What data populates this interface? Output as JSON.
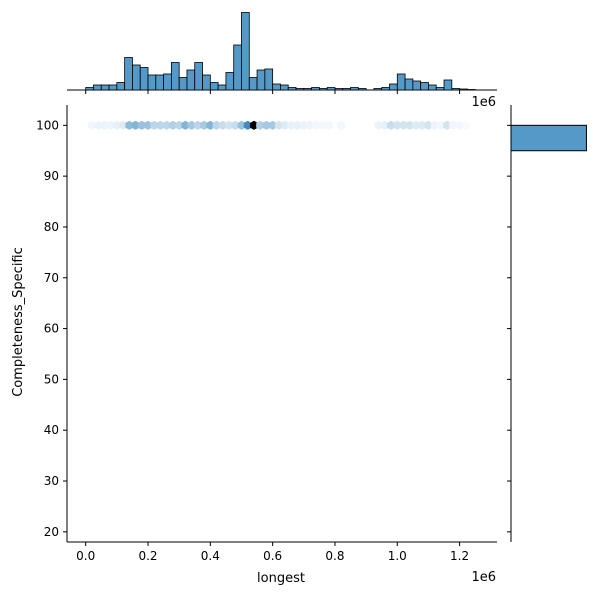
{
  "chart_data": {
    "type": "hexbin-joint",
    "xlabel": "longest",
    "ylabel": "Completeness_Specific",
    "x_offset_label": "1e6",
    "top_hist_offset_label": "1e6",
    "xlim": [
      -0.06,
      1.32
    ],
    "ylim": [
      18,
      104
    ],
    "x_ticks": [
      0.0,
      0.2,
      0.4,
      0.6,
      0.8,
      1.0,
      1.2
    ],
    "x_tick_labels": [
      "0.0",
      "0.2",
      "0.4",
      "0.6",
      "0.8",
      "1.0",
      "1.2"
    ],
    "y_ticks": [
      20,
      30,
      40,
      50,
      60,
      70,
      80,
      90,
      100
    ],
    "y_tick_labels": [
      "20",
      "30",
      "40",
      "50",
      "60",
      "70",
      "80",
      "90",
      "100"
    ],
    "colors": {
      "bar_fill": "#5599c9",
      "bar_edge": "#000000",
      "hex_dark": "#000000",
      "hex_base": "#1f77b4"
    },
    "hexbins": {
      "y": 100,
      "x": [
        0.02,
        0.04,
        0.06,
        0.08,
        0.1,
        0.12,
        0.14,
        0.16,
        0.18,
        0.2,
        0.22,
        0.24,
        0.26,
        0.28,
        0.3,
        0.32,
        0.34,
        0.36,
        0.38,
        0.4,
        0.42,
        0.44,
        0.46,
        0.48,
        0.5,
        0.52,
        0.54,
        0.56,
        0.58,
        0.6,
        0.62,
        0.64,
        0.66,
        0.68,
        0.7,
        0.72,
        0.74,
        0.76,
        0.78,
        0.82,
        0.94,
        0.96,
        0.98,
        1.0,
        1.02,
        1.04,
        1.06,
        1.08,
        1.1,
        1.12,
        1.14,
        1.16,
        1.18,
        1.2,
        1.22
      ],
      "intensity": [
        0.06,
        0.08,
        0.08,
        0.08,
        0.1,
        0.14,
        0.5,
        0.55,
        0.45,
        0.45,
        0.3,
        0.3,
        0.3,
        0.35,
        0.3,
        0.55,
        0.4,
        0.3,
        0.4,
        0.55,
        0.3,
        0.25,
        0.2,
        0.25,
        0.45,
        0.85,
        1.0,
        0.35,
        0.4,
        0.4,
        0.2,
        0.15,
        0.1,
        0.1,
        0.08,
        0.08,
        0.06,
        0.06,
        0.06,
        0.06,
        0.08,
        0.1,
        0.25,
        0.2,
        0.2,
        0.2,
        0.15,
        0.15,
        0.2,
        0.08,
        0.06,
        0.2,
        0.06,
        0.06,
        0.04
      ]
    },
    "top_histogram": {
      "x_start": 0.0,
      "bin_width": 0.025,
      "counts": [
        0.5,
        1,
        1,
        1,
        1.5,
        6.5,
        5,
        4.5,
        3,
        3,
        3.2,
        5.5,
        2.5,
        4,
        5.5,
        3,
        1.5,
        1,
        3.5,
        9,
        15.5,
        2.5,
        4,
        4.2,
        1.2,
        1,
        0.5,
        0.3,
        0.3,
        0.5,
        0.3,
        0.5,
        0.3,
        0.3,
        0.5,
        0.3,
        0,
        0.3,
        0.5,
        1.2,
        3.2,
        2.2,
        1.8,
        1.5,
        1,
        0.5,
        2,
        0.3,
        0.2,
        0.1
      ],
      "max": 16
    },
    "right_histogram": {
      "bins": [
        {
          "y_low": 95,
          "y_high": 100,
          "count": 1
        }
      ],
      "max": 1.1
    }
  }
}
